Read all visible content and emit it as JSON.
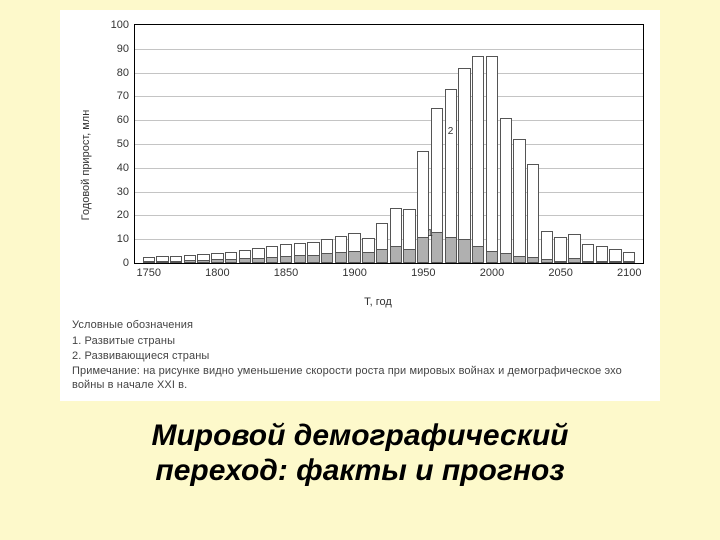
{
  "chart": {
    "type": "bar-stacked",
    "ylabel": "Годовой прирост, млн",
    "xlabel": "Т, год",
    "background_color": "#ffffff",
    "grid_color": "#c4c4c4",
    "border_color": "#000000",
    "ylim": [
      0,
      100
    ],
    "yticks": [
      0,
      10,
      20,
      30,
      40,
      50,
      60,
      70,
      80,
      90,
      100
    ],
    "xticks": [
      1750,
      1800,
      1850,
      1900,
      1950,
      2000,
      2050,
      2100
    ],
    "xrange": [
      1740,
      2110
    ],
    "series1_color": "#b0b0b0",
    "series2_color": "#ffffff",
    "bar_border_color": "#555555",
    "bar_width_years": 9,
    "annotations": [
      {
        "text": "1",
        "year": 1955,
        "value": 12
      },
      {
        "text": "2",
        "year": 1970,
        "value": 55
      }
    ],
    "data": [
      {
        "year": 1750,
        "s1": 1.0,
        "s2": 1.5
      },
      {
        "year": 1760,
        "s1": 1.0,
        "s2": 1.8
      },
      {
        "year": 1770,
        "s1": 1.0,
        "s2": 2.0
      },
      {
        "year": 1780,
        "s1": 1.2,
        "s2": 2.2
      },
      {
        "year": 1790,
        "s1": 1.3,
        "s2": 2.5
      },
      {
        "year": 1800,
        "s1": 1.5,
        "s2": 2.8
      },
      {
        "year": 1810,
        "s1": 1.7,
        "s2": 3.0
      },
      {
        "year": 1820,
        "s1": 2.0,
        "s2": 3.5
      },
      {
        "year": 1830,
        "s1": 2.3,
        "s2": 4.0
      },
      {
        "year": 1840,
        "s1": 2.7,
        "s2": 4.5
      },
      {
        "year": 1850,
        "s1": 3.0,
        "s2": 4.8
      },
      {
        "year": 1860,
        "s1": 3.2,
        "s2": 5.0
      },
      {
        "year": 1870,
        "s1": 3.5,
        "s2": 5.5
      },
      {
        "year": 1880,
        "s1": 4.0,
        "s2": 6.0
      },
      {
        "year": 1890,
        "s1": 4.5,
        "s2": 7.0
      },
      {
        "year": 1900,
        "s1": 5.0,
        "s2": 7.5
      },
      {
        "year": 1910,
        "s1": 4.5,
        "s2": 6.0
      },
      {
        "year": 1920,
        "s1": 6.0,
        "s2": 11.0
      },
      {
        "year": 1930,
        "s1": 7.0,
        "s2": 16.0
      },
      {
        "year": 1940,
        "s1": 6.0,
        "s2": 16.5
      },
      {
        "year": 1950,
        "s1": 11.0,
        "s2": 36.0
      },
      {
        "year": 1960,
        "s1": 13.0,
        "s2": 52.0
      },
      {
        "year": 1970,
        "s1": 11.0,
        "s2": 62.0
      },
      {
        "year": 1980,
        "s1": 10.0,
        "s2": 72.0
      },
      {
        "year": 1990,
        "s1": 7.0,
        "s2": 80.0
      },
      {
        "year": 2000,
        "s1": 5.0,
        "s2": 82.0
      },
      {
        "year": 2010,
        "s1": 4.0,
        "s2": 57.0
      },
      {
        "year": 2020,
        "s1": 3.0,
        "s2": 49.0
      },
      {
        "year": 2030,
        "s1": 2.5,
        "s2": 39.0
      },
      {
        "year": 2040,
        "s1": 1.5,
        "s2": 12.0
      },
      {
        "year": 2050,
        "s1": 1.0,
        "s2": 10.0
      },
      {
        "year": 2060,
        "s1": 2.0,
        "s2": 10.0
      },
      {
        "year": 2070,
        "s1": 1.0,
        "s2": 7.0
      },
      {
        "year": 2080,
        "s1": 1.0,
        "s2": 6.0
      },
      {
        "year": 2090,
        "s1": 1.0,
        "s2": 5.0
      },
      {
        "year": 2100,
        "s1": 1.0,
        "s2": 3.5
      }
    ]
  },
  "legend": {
    "heading": "Условные обозначения",
    "item1": "1. Развитые страны",
    "item2": "2. Развивающиеся страны",
    "note": "Примечание: на рисунке видно уменьшение скорости роста при мировых войнах и демографическое эхо войны в начале XXI в."
  },
  "title": {
    "line1": "Мировой демографический",
    "line2": "переход: факты и прогноз"
  },
  "page_background": "#fdf9cb"
}
